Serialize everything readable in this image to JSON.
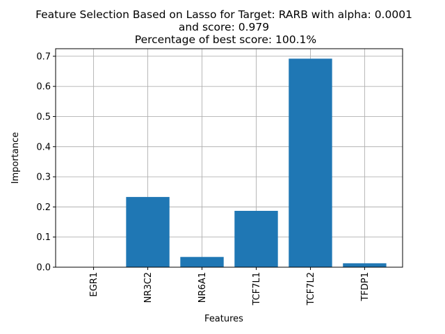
{
  "chart_data": {
    "type": "bar",
    "title_lines": [
      "Feature Selection Based on Lasso for Target: RARB with alpha: 0.0001",
      "and score: 0.979",
      " Percentage of best score: 100.1%"
    ],
    "xlabel": "Features",
    "ylabel": "Importance",
    "categories": [
      "EGR1",
      "NR3C2",
      "NR6A1",
      "TCF7L1",
      "TCF7L2",
      "TFDP1"
    ],
    "values": [
      0.0,
      0.233,
      0.034,
      0.187,
      0.692,
      0.013
    ],
    "ylim": [
      0,
      0.725
    ],
    "yticks": [
      0.0,
      0.1,
      0.2,
      0.3,
      0.4,
      0.5,
      0.6,
      0.7
    ],
    "ytick_labels": [
      "0.0",
      "0.1",
      "0.2",
      "0.3",
      "0.4",
      "0.5",
      "0.6",
      "0.7"
    ],
    "bar_color": "#1f77b4",
    "grid": true,
    "xtick_rotation": "vertical"
  }
}
